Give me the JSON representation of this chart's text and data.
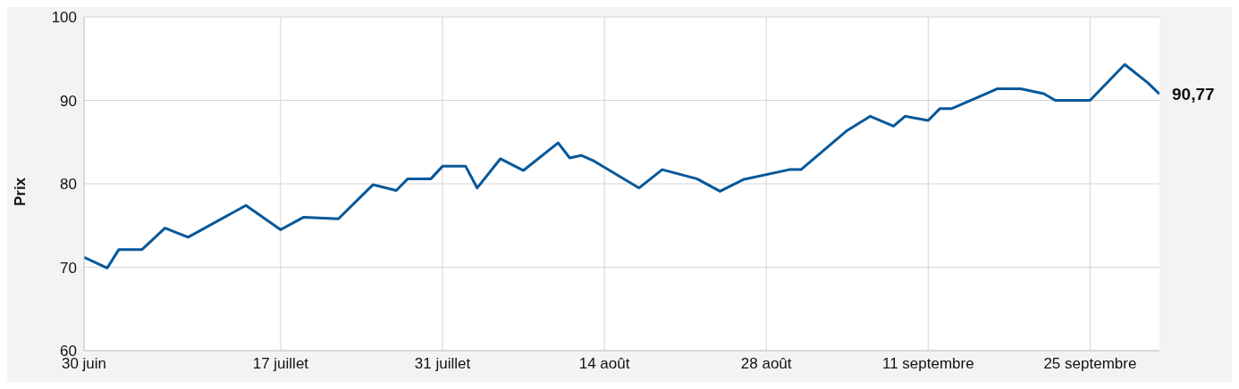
{
  "chart_data": {
    "type": "line",
    "ylabel": "Prix",
    "x": [
      "--06-30",
      "--07-02",
      "--07-03",
      "--07-05",
      "--07-07",
      "--07-09",
      "--07-14",
      "--07-17",
      "--07-19",
      "--07-22",
      "--07-25",
      "--07-27",
      "--07-28",
      "--07-30",
      "--07-31",
      "--08-02",
      "--08-03",
      "--08-05",
      "--08-07",
      "--08-10",
      "--08-11",
      "--08-12",
      "--08-13",
      "--08-17",
      "--08-19",
      "--08-22",
      "--08-24",
      "--08-26",
      "--08-30",
      "--08-31",
      "--09-04",
      "--09-06",
      "--09-08",
      "--09-09",
      "--09-11",
      "--09-12",
      "--09-13",
      "--09-16",
      "--09-17",
      "--09-19",
      "--09-21",
      "--09-22",
      "--09-25",
      "--09-28",
      "--09-30",
      "--10-01"
    ],
    "series": [
      {
        "color": "#07589a",
        "values": [
          71.2,
          69.9,
          72.1,
          72.1,
          74.7,
          73.6,
          77.4,
          74.5,
          76.0,
          75.8,
          79.9,
          79.2,
          80.6,
          80.6,
          82.1,
          82.1,
          79.5,
          83.0,
          81.6,
          84.9,
          83.1,
          83.4,
          82.8,
          79.5,
          81.7,
          80.6,
          79.1,
          80.5,
          81.7,
          81.7,
          86.4,
          88.1,
          86.9,
          88.1,
          87.6,
          89.0,
          89.0,
          90.8,
          91.4,
          91.4,
          90.8,
          90.0,
          90.0,
          94.3,
          92.1,
          90.77
        ]
      }
    ],
    "xlim": [
      "--06-30",
      "--10-01"
    ],
    "xticks": [
      {
        "value": "--06-30",
        "label": "30 juin"
      },
      {
        "value": "--07-17",
        "label": "17 juillet"
      },
      {
        "value": "--07-31",
        "label": "31 juillet"
      },
      {
        "value": "--08-14",
        "label": "14 août"
      },
      {
        "value": "--08-28",
        "label": "28 août"
      },
      {
        "value": "--09-11",
        "label": "11 septembre"
      },
      {
        "value": "--09-25",
        "label": "25 septembre"
      }
    ],
    "ylim": [
      60,
      100
    ],
    "yticks": [
      60,
      70,
      80,
      90,
      100
    ],
    "grid": true,
    "annotations": [
      {
        "text": "90,77",
        "x": "--10-01",
        "y": 90.77
      }
    ]
  }
}
